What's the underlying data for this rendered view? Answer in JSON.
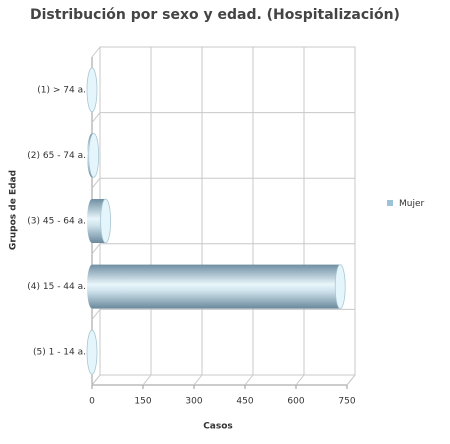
{
  "chart_data": {
    "type": "bar",
    "orientation": "horizontal",
    "title": "Distribución por sexo y edad. (Hospitalización)",
    "x_label": "Casos",
    "y_label": "Grupos de Edad",
    "categories": [
      "(1) > 74 a.",
      "(2) 65 - 74 a.",
      "(3) 45 - 64 a.",
      "(4) 15 - 44 a.",
      "(5) 1 - 14 a."
    ],
    "series": [
      {
        "name": "Mujer",
        "color": "#9cc3da",
        "values": [
          0,
          5,
          40,
          730,
          0
        ]
      }
    ],
    "xlim": [
      0,
      750
    ],
    "xticks": [
      0,
      150,
      300,
      450,
      600,
      750
    ],
    "grid": true
  }
}
